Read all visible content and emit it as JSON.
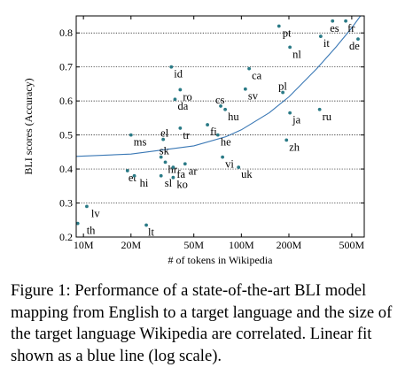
{
  "chart_data": {
    "type": "scatter",
    "xlabel": "# of tokens in Wikipedia",
    "ylabel": "BLI scores (Accuracy)",
    "x_scale": "log",
    "xlim": [
      9000000,
      600000000
    ],
    "ylim": [
      0.2,
      0.85
    ],
    "x_ticks": [
      {
        "value": 10000000,
        "label": "10M"
      },
      {
        "value": 20000000,
        "label": "20M"
      },
      {
        "value": 50000000,
        "label": "50M"
      },
      {
        "value": 100000000,
        "label": "100M"
      },
      {
        "value": 200000000,
        "label": "200M"
      },
      {
        "value": 500000000,
        "label": "500M"
      }
    ],
    "y_ticks": [
      {
        "value": 0.2,
        "label": "0.2"
      },
      {
        "value": 0.3,
        "label": "0.3"
      },
      {
        "value": 0.4,
        "label": "0.4"
      },
      {
        "value": 0.5,
        "label": "0.5"
      },
      {
        "value": 0.6,
        "label": "0.6"
      },
      {
        "value": 0.7,
        "label": "0.7"
      },
      {
        "value": 0.8,
        "label": "0.8"
      }
    ],
    "grid": "horizontal-dotted",
    "points_color": "#2a7a86",
    "fit_color": "#3a78b5",
    "points": [
      {
        "label": "th",
        "x": 9200000,
        "y": 0.24,
        "lx": 1.0,
        "ly": -1
      },
      {
        "label": "lv",
        "x": 10500000,
        "y": 0.29,
        "lx": 0.5,
        "ly": -1
      },
      {
        "label": "lt",
        "x": 25000000,
        "y": 0.235,
        "lx": 0.2,
        "ly": -1
      },
      {
        "label": "et",
        "x": 19000000,
        "y": 0.395,
        "lx": 0.1,
        "ly": -1
      },
      {
        "label": "hi",
        "x": 21000000,
        "y": 0.38,
        "lx": 0.6,
        "ly": -1
      },
      {
        "label": "sl",
        "x": 31000000,
        "y": 0.38,
        "lx": 0.4,
        "ly": -1
      },
      {
        "label": "ko",
        "x": 37000000,
        "y": 0.375,
        "lx": 0.4,
        "ly": -1
      },
      {
        "label": "sk",
        "x": 31000000,
        "y": 0.435,
        "lx": -0.2,
        "ly": 1
      },
      {
        "label": "hr",
        "x": 33000000,
        "y": 0.42,
        "lx": 0.3,
        "ly": -1
      },
      {
        "label": "fa",
        "x": 37000000,
        "y": 0.405,
        "lx": 0.4,
        "ly": -1
      },
      {
        "label": "ar",
        "x": 44000000,
        "y": 0.415,
        "lx": 0.4,
        "ly": -1
      },
      {
        "label": "ms",
        "x": 20000000,
        "y": 0.5,
        "lx": 0.3,
        "ly": -1
      },
      {
        "label": "el",
        "x": 32000000,
        "y": 0.487,
        "lx": -0.3,
        "ly": 1
      },
      {
        "label": "tr",
        "x": 41000000,
        "y": 0.52,
        "lx": 0.3,
        "ly": -1
      },
      {
        "label": "fi",
        "x": 61000000,
        "y": 0.53,
        "lx": 0.3,
        "ly": -1
      },
      {
        "label": "he",
        "x": 71000000,
        "y": 0.5,
        "lx": 0.3,
        "ly": -1
      },
      {
        "label": "vi",
        "x": 76000000,
        "y": 0.435,
        "lx": 0.3,
        "ly": -1
      },
      {
        "label": "uk",
        "x": 96000000,
        "y": 0.405,
        "lx": 0.3,
        "ly": -1
      },
      {
        "label": "id",
        "x": 36000000,
        "y": 0.7,
        "lx": 0.3,
        "ly": -1
      },
      {
        "label": "ro",
        "x": 41000000,
        "y": 0.633,
        "lx": 0.3,
        "ly": -1
      },
      {
        "label": "da",
        "x": 38000000,
        "y": 0.605,
        "lx": 0.3,
        "ly": -1
      },
      {
        "label": "cs",
        "x": 74000000,
        "y": 0.585,
        "lx": -0.6,
        "ly": 1
      },
      {
        "label": "hu",
        "x": 79000000,
        "y": 0.575,
        "lx": 0.3,
        "ly": -1
      },
      {
        "label": "ca",
        "x": 112000000,
        "y": 0.695,
        "lx": 0.3,
        "ly": -1
      },
      {
        "label": "sv",
        "x": 106000000,
        "y": 0.635,
        "lx": 0.3,
        "ly": -1
      },
      {
        "label": "pl",
        "x": 183000000,
        "y": 0.625,
        "lx": -0.5,
        "ly": 1
      },
      {
        "label": "ja",
        "x": 203000000,
        "y": 0.565,
        "lx": 0.3,
        "ly": -1
      },
      {
        "label": "zh",
        "x": 193000000,
        "y": 0.485,
        "lx": 0.3,
        "ly": -1
      },
      {
        "label": "ru",
        "x": 313000000,
        "y": 0.575,
        "lx": 0.3,
        "ly": -1
      },
      {
        "label": "pt",
        "x": 173000000,
        "y": 0.82,
        "lx": 0.4,
        "ly": -1
      },
      {
        "label": "nl",
        "x": 203000000,
        "y": 0.758,
        "lx": 0.3,
        "ly": -1
      },
      {
        "label": "it",
        "x": 318000000,
        "y": 0.79,
        "lx": 0.3,
        "ly": -1
      },
      {
        "label": "es",
        "x": 378000000,
        "y": 0.835,
        "lx": -0.3,
        "ly": -1
      },
      {
        "label": "fr",
        "x": 458000000,
        "y": 0.835,
        "lx": 0.2,
        "ly": -1
      },
      {
        "label": "de",
        "x": 548000000,
        "y": 0.782,
        "lx": -1.0,
        "ly": -1
      }
    ],
    "fit_line": {
      "x": [
        9000000,
        20000000,
        50000000,
        80000000,
        100000000,
        150000000,
        200000000,
        300000000,
        400000000,
        500000000,
        600000000
      ],
      "y": [
        0.437,
        0.444,
        0.468,
        0.495,
        0.515,
        0.565,
        0.612,
        0.695,
        0.76,
        0.815,
        0.865
      ]
    }
  },
  "caption": "Figure 1: Performance of a state-of-the-art BLI model mapping from English to a target language and the size of the target language Wikipedia are correlated. Linear fit shown as a blue line (log scale)."
}
